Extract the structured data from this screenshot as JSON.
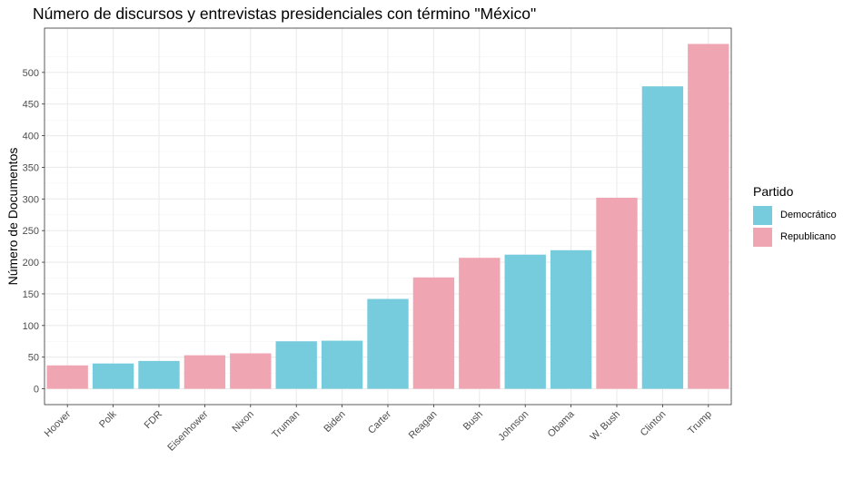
{
  "chart_data": {
    "type": "bar",
    "title": "Número de discursos y entrevistas presidenciales con término \"México\"",
    "xlabel": "",
    "ylabel": "Número de Documentos",
    "ylim": [
      -25,
      570
    ],
    "yticks": [
      0,
      50,
      100,
      150,
      200,
      250,
      300,
      350,
      400,
      450,
      500
    ],
    "grid": true,
    "legend_position": "right",
    "legend": {
      "title": "Partido",
      "entries": [
        {
          "name": "Democrático",
          "color": "#76CBDD"
        },
        {
          "name": "Republicano",
          "color": "#F0A5B2"
        }
      ]
    },
    "categories": [
      "Hoover",
      "Polk",
      "FDR",
      "Eisenhower",
      "Nixon",
      "Truman",
      "Biden",
      "Carter",
      "Reagan",
      "Bush",
      "Johnson",
      "Obama",
      "W. Bush",
      "Clinton",
      "Trump"
    ],
    "values": [
      37,
      40,
      44,
      53,
      56,
      75,
      76,
      142,
      176,
      207,
      212,
      219,
      302,
      478,
      545
    ],
    "party": [
      "Republicano",
      "Democrático",
      "Democrático",
      "Republicano",
      "Republicano",
      "Democrático",
      "Democrático",
      "Democrático",
      "Republicano",
      "Republicano",
      "Democrático",
      "Democrático",
      "Republicano",
      "Democrático",
      "Republicano"
    ]
  }
}
